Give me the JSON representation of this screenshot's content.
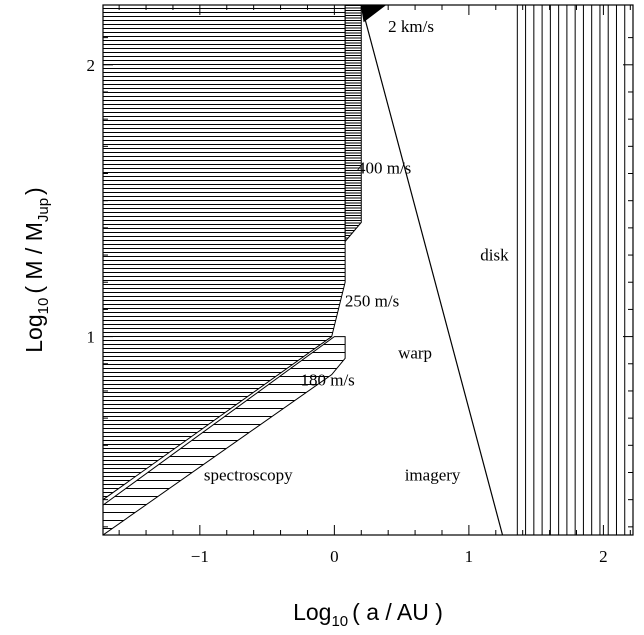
{
  "chart_data": {
    "type": "area",
    "title": "",
    "xlabel": {
      "prefix": "Log",
      "sub": "10",
      "suffix": "( a / AU )"
    },
    "ylabel": {
      "prefix": "Log",
      "sub": "10",
      "suffix": "( M / M",
      "sub2": "Jup",
      "end": ")"
    },
    "xlim": [
      -1.72,
      2.22
    ],
    "ylim": [
      0.27,
      2.22
    ],
    "xticks": [
      {
        "value": -1,
        "label": "−1"
      },
      {
        "value": 0,
        "label": "0"
      },
      {
        "value": 1,
        "label": "1"
      },
      {
        "value": 2,
        "label": "2"
      }
    ],
    "yticks": [
      {
        "value": 1,
        "label": "1"
      },
      {
        "value": 2,
        "label": "2"
      }
    ],
    "grid": false,
    "regions": [
      {
        "name": "",
        "hatch": "horizontal-dense",
        "polygon": [
          [
            -1.72,
            0.4
          ],
          [
            -0.02,
            1.0
          ],
          [
            0.08,
            1.2
          ],
          [
            0.08,
            2.22
          ],
          [
            -1.72,
            2.22
          ]
        ]
      },
      {
        "name": "",
        "hatch": "horizontal-fine",
        "polygon": [
          [
            0.08,
            1.35
          ],
          [
            0.08,
            2.22
          ],
          [
            0.2,
            2.22
          ],
          [
            0.2,
            1.42
          ]
        ]
      },
      {
        "name": "",
        "hatch": "solid",
        "polygon": [
          [
            0.2,
            2.22
          ],
          [
            0.38,
            2.22
          ],
          [
            0.22,
            2.16
          ]
        ]
      },
      {
        "name": "",
        "hatch": "horizontal-sparse",
        "polygon": [
          [
            -1.72,
            0.27
          ],
          [
            -1.72,
            0.38
          ],
          [
            0.0,
            1.0
          ],
          [
            0.08,
            1.0
          ],
          [
            0.08,
            0.92
          ],
          [
            -0.02,
            0.86
          ]
        ]
      },
      {
        "name": "",
        "hatch": "vertical",
        "polygon": [
          [
            1.36,
            0.27
          ],
          [
            1.36,
            2.22
          ],
          [
            2.22,
            2.22
          ],
          [
            2.22,
            0.27
          ]
        ]
      }
    ],
    "lines": [
      {
        "name": "",
        "points": [
          [
            0.2,
            2.22
          ],
          [
            1.25,
            0.27
          ]
        ]
      }
    ],
    "annotations": [
      {
        "text": "2 km/s",
        "x": 0.57,
        "y": 2.12
      },
      {
        "text": "400 m/s",
        "x": 0.37,
        "y": 1.6
      },
      {
        "text": "250 m/s",
        "x": 0.28,
        "y": 1.11
      },
      {
        "text": "180 m/s",
        "x": -0.05,
        "y": 0.82
      },
      {
        "text": "disk",
        "x": 1.19,
        "y": 1.28
      },
      {
        "text": "warp",
        "x": 0.6,
        "y": 0.92
      },
      {
        "text": "spectroscopy",
        "x": -0.64,
        "y": 0.47
      },
      {
        "text": "imagery",
        "x": 0.73,
        "y": 0.47
      }
    ]
  }
}
